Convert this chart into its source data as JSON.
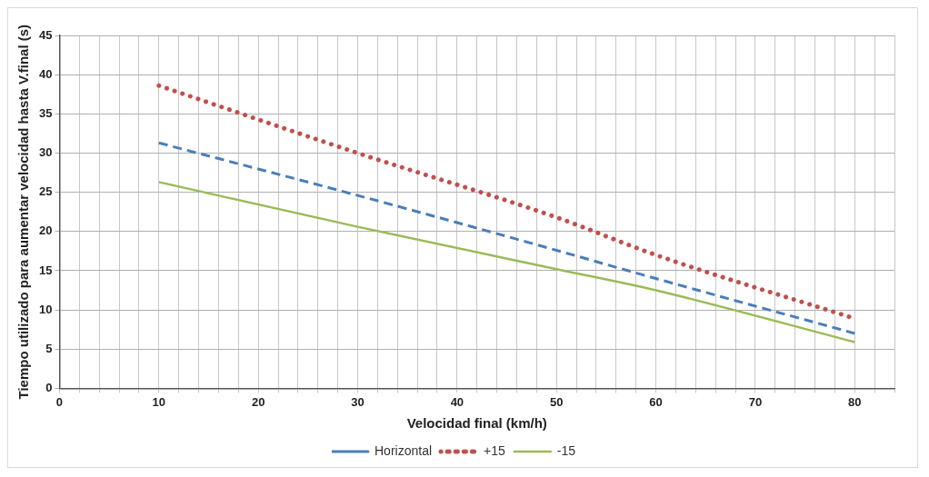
{
  "chart_data": {
    "type": "line",
    "xlabel": "Velocidad final (km/h)",
    "ylabel": "Tiempo utilizado para aumentar velocidad hasta V.final (s)",
    "x": [
      10,
      30,
      50,
      60,
      80
    ],
    "series": [
      {
        "name": "Horizontal",
        "color": "#4a7ebb",
        "values": [
          31.3,
          24.6,
          17.6,
          14.0,
          7.0
        ],
        "line_style": "dashed"
      },
      {
        "name": "+15",
        "color": "#c0504d",
        "values": [
          38.6,
          30.0,
          21.8,
          17.0,
          8.9
        ],
        "line_style": "dotted"
      },
      {
        "name": "-15",
        "color": "#9bbb59",
        "values": [
          26.3,
          20.6,
          15.2,
          12.5,
          5.9
        ],
        "line_style": "solid"
      }
    ],
    "xlim": [
      0,
      84
    ],
    "ylim": [
      0,
      45
    ],
    "xticks": [
      0,
      {
        "value": 2,
        "label": null
      },
      {
        "value": 4,
        "label": null
      },
      {
        "value": 6,
        "label": null
      },
      {
        "value": 8,
        "label": null
      },
      10,
      {
        "value": 12,
        "label": null
      },
      {
        "value": 14,
        "label": null
      },
      {
        "value": 16,
        "label": null
      },
      {
        "value": 18,
        "label": null
      },
      20,
      {
        "value": 22,
        "label": null
      },
      {
        "value": 24,
        "label": null
      },
      {
        "value": 26,
        "label": null
      },
      {
        "value": 28,
        "label": null
      },
      30,
      {
        "value": 32,
        "label": null
      },
      {
        "value": 34,
        "label": null
      },
      {
        "value": 36,
        "label": null
      },
      {
        "value": 38,
        "label": null
      },
      40,
      {
        "value": 42,
        "label": null
      },
      {
        "value": 44,
        "label": null
      },
      {
        "value": 46,
        "label": null
      },
      {
        "value": 48,
        "label": null
      },
      50,
      {
        "value": 52,
        "label": null
      },
      {
        "value": 54,
        "label": null
      },
      {
        "value": 56,
        "label": null
      },
      {
        "value": 58,
        "label": null
      },
      60,
      {
        "value": 62,
        "label": null
      },
      {
        "value": 64,
        "label": null
      },
      {
        "value": 66,
        "label": null
      },
      {
        "value": 68,
        "label": null
      },
      70,
      {
        "value": 72,
        "label": null
      },
      {
        "value": 74,
        "label": null
      },
      {
        "value": 76,
        "label": null
      },
      {
        "value": 78,
        "label": null
      },
      80,
      {
        "value": 82,
        "label": null
      },
      {
        "value": 84,
        "label": null
      }
    ],
    "yticks": [
      0,
      5,
      10,
      15,
      20,
      25,
      30,
      35,
      40,
      45
    ],
    "grid": true,
    "legend": "bottom",
    "marker": "none"
  }
}
